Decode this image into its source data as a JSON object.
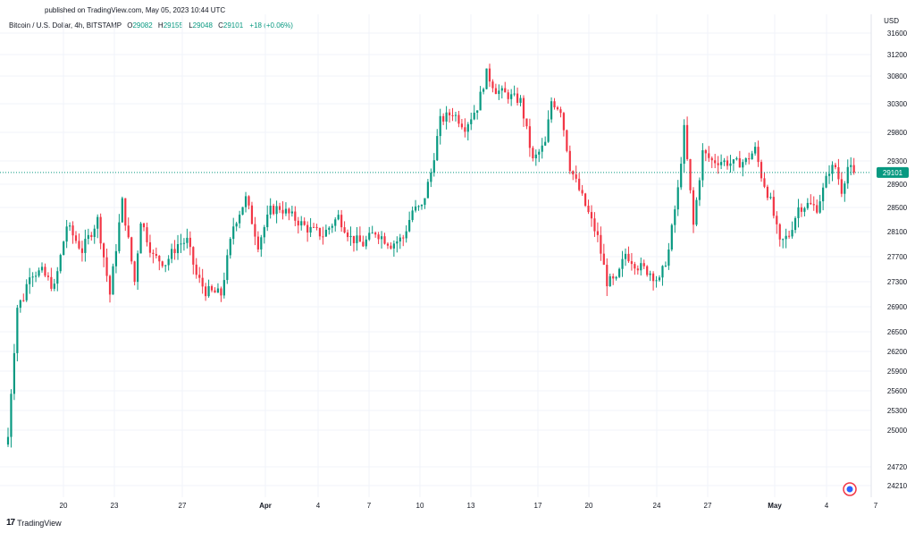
{
  "header": {
    "published": "published on TradingView.com, May 05, 2023 10:44 UTC",
    "currency": "USD"
  },
  "legend": {
    "symbol": "Bitcoin / U.S. Dollar, 4h, BITSTAMP",
    "open_label": "O",
    "open": "29082",
    "high_label": "H",
    "high": "29155",
    "low_label": "L",
    "low": "29048",
    "close_label": "C",
    "close": "29101",
    "change": "+18 (+0.06%)"
  },
  "footer": {
    "brand": "TradingView",
    "logo": "17"
  },
  "colors": {
    "up": "#089981",
    "down": "#f23645",
    "grid": "#f0f3fa",
    "price_line": "#089981"
  },
  "chart_data": {
    "type": "candlestick",
    "title": "Bitcoin / U.S. Dollar, 4h, BITSTAMP",
    "ylabel": "USD",
    "y_ticks": [
      24210,
      24720,
      25000,
      25300,
      25600,
      25900,
      26200,
      26500,
      26900,
      27300,
      27700,
      28100,
      28500,
      28900,
      29300,
      29800,
      30300,
      30800,
      31200,
      31600
    ],
    "x_ticks": [
      "20",
      "23",
      "27",
      "Apr",
      "4",
      "7",
      "10",
      "13",
      "17",
      "20",
      "24",
      "27",
      "May",
      "4",
      "7"
    ],
    "x_ticks_bold": [
      "Apr",
      "May"
    ],
    "last_price": 29101,
    "anchors": [
      [
        0,
        24950
      ],
      [
        3,
        26900
      ],
      [
        5,
        27050
      ],
      [
        7,
        27450
      ],
      [
        11,
        27450
      ],
      [
        15,
        27200
      ],
      [
        19,
        28200
      ],
      [
        24,
        27800
      ],
      [
        29,
        28300
      ],
      [
        33,
        27100
      ],
      [
        37,
        28600
      ],
      [
        41,
        27300
      ],
      [
        43,
        28300
      ],
      [
        47,
        27700
      ],
      [
        51,
        27600
      ],
      [
        55,
        27900
      ],
      [
        58,
        27950
      ],
      [
        61,
        27400
      ],
      [
        64,
        27150
      ],
      [
        69,
        27100
      ],
      [
        73,
        28200
      ],
      [
        77,
        28650
      ],
      [
        81,
        27900
      ],
      [
        85,
        28450
      ],
      [
        88,
        28500
      ],
      [
        92,
        28350
      ],
      [
        97,
        28150
      ],
      [
        102,
        28050
      ],
      [
        107,
        28350
      ],
      [
        111,
        28000
      ],
      [
        115,
        27900
      ],
      [
        119,
        28100
      ],
      [
        124,
        27900
      ],
      [
        128,
        28000
      ],
      [
        131,
        28450
      ],
      [
        134,
        28500
      ],
      [
        137,
        29100
      ],
      [
        140,
        30000
      ],
      [
        144,
        30150
      ],
      [
        148,
        29900
      ],
      [
        152,
        30250
      ],
      [
        155,
        30850
      ],
      [
        158,
        30550
      ],
      [
        162,
        30450
      ],
      [
        166,
        30350
      ],
      [
        170,
        29300
      ],
      [
        174,
        29600
      ],
      [
        176,
        30350
      ],
      [
        179,
        30200
      ],
      [
        182,
        29200
      ],
      [
        185,
        28800
      ],
      [
        188,
        28400
      ],
      [
        191,
        28000
      ],
      [
        194,
        27300
      ],
      [
        197,
        27300
      ],
      [
        200,
        27750
      ],
      [
        204,
        27550
      ],
      [
        208,
        27450
      ],
      [
        211,
        27300
      ],
      [
        214,
        27800
      ],
      [
        217,
        28800
      ],
      [
        219,
        29850
      ],
      [
        222,
        28200
      ],
      [
        225,
        29450
      ],
      [
        228,
        29300
      ],
      [
        231,
        29300
      ],
      [
        235,
        29250
      ],
      [
        239,
        29300
      ],
      [
        242,
        29500
      ],
      [
        244,
        29050
      ],
      [
        247,
        28600
      ],
      [
        250,
        27900
      ],
      [
        253,
        28050
      ],
      [
        256,
        28500
      ],
      [
        259,
        28550
      ],
      [
        262,
        28500
      ],
      [
        264,
        28800
      ],
      [
        266,
        29150
      ],
      [
        268,
        29200
      ],
      [
        270,
        28800
      ],
      [
        272,
        29200
      ],
      [
        274,
        29101
      ]
    ]
  }
}
